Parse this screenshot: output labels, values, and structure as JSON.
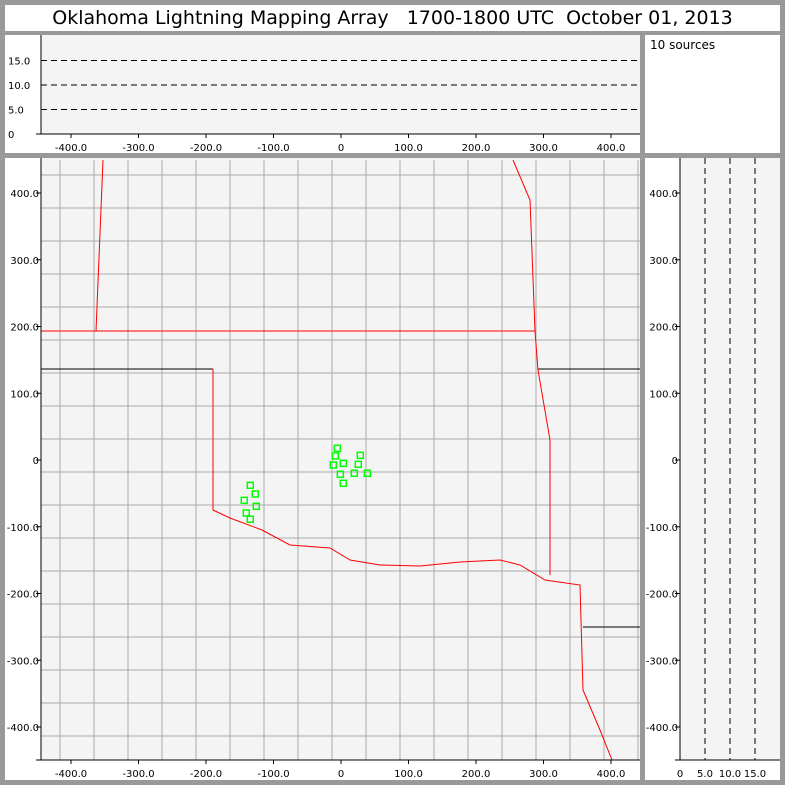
{
  "title": "Oklahoma Lightning Mapping Array   1700-1800 UTC  October 01, 2013",
  "legend_text": "10 sources",
  "colors": {
    "background": "#999999",
    "plot": "#f4f4f4",
    "source": "#00ff00",
    "state_border": "#ff0000",
    "county": "#999999"
  },
  "chart_data": [
    {
      "type": "line",
      "panel": "altitude-vs-x",
      "xlim": [
        -460,
        440
      ],
      "ylim": [
        0,
        20
      ],
      "xticks": [
        "-400.0",
        "-300.0",
        "-200.0",
        "-100.0",
        "0",
        "100.0",
        "200.0",
        "300.0",
        "400.0"
      ],
      "yticks": [
        "0",
        "5.0",
        "10.0",
        "15.0"
      ],
      "reference_lines_y": [
        5,
        10,
        15
      ]
    },
    {
      "type": "scatter",
      "panel": "plan-view",
      "xlim": [
        -460,
        440
      ],
      "ylim": [
        -450,
        400
      ],
      "xticks": [
        "-400.0",
        "-300.0",
        "-200.0",
        "-100.0",
        "0",
        "100.0",
        "200.0",
        "300.0",
        "400.0"
      ],
      "yticks": [
        "-400.0",
        "-300.0",
        "-200.0",
        "-100.0",
        "0",
        "100.0",
        "200.0",
        "300.0",
        "400.0"
      ],
      "points": [
        [
          -5.5,
          17.5
        ],
        [
          -8.4,
          6
        ],
        [
          28.6,
          7
        ],
        [
          -11.4,
          -7.5
        ],
        [
          3.4,
          -5
        ],
        [
          25.6,
          -6.4
        ],
        [
          -1,
          -21.4
        ],
        [
          19.7,
          -19.9
        ],
        [
          39,
          -19.9
        ],
        [
          3.4,
          -34.9
        ],
        [
          -134.4,
          -37.9
        ],
        [
          -127,
          -50.9
        ],
        [
          -143.3,
          -60.4
        ],
        [
          -125.5,
          -69.4
        ],
        [
          -140.3,
          -79.4
        ],
        [
          -134.4,
          -88.8
        ]
      ]
    },
    {
      "type": "line",
      "panel": "y-vs-altitude",
      "xlim": [
        0,
        20
      ],
      "xticks": [
        "0",
        "5.0",
        "10.0",
        "15.0"
      ],
      "yticks": [
        "-400.0",
        "-300.0",
        "-200.0",
        "-100.0",
        "0",
        "100.0",
        "200.0",
        "300.0",
        "400.0"
      ],
      "reference_lines_x": [
        5,
        10,
        15
      ]
    }
  ]
}
